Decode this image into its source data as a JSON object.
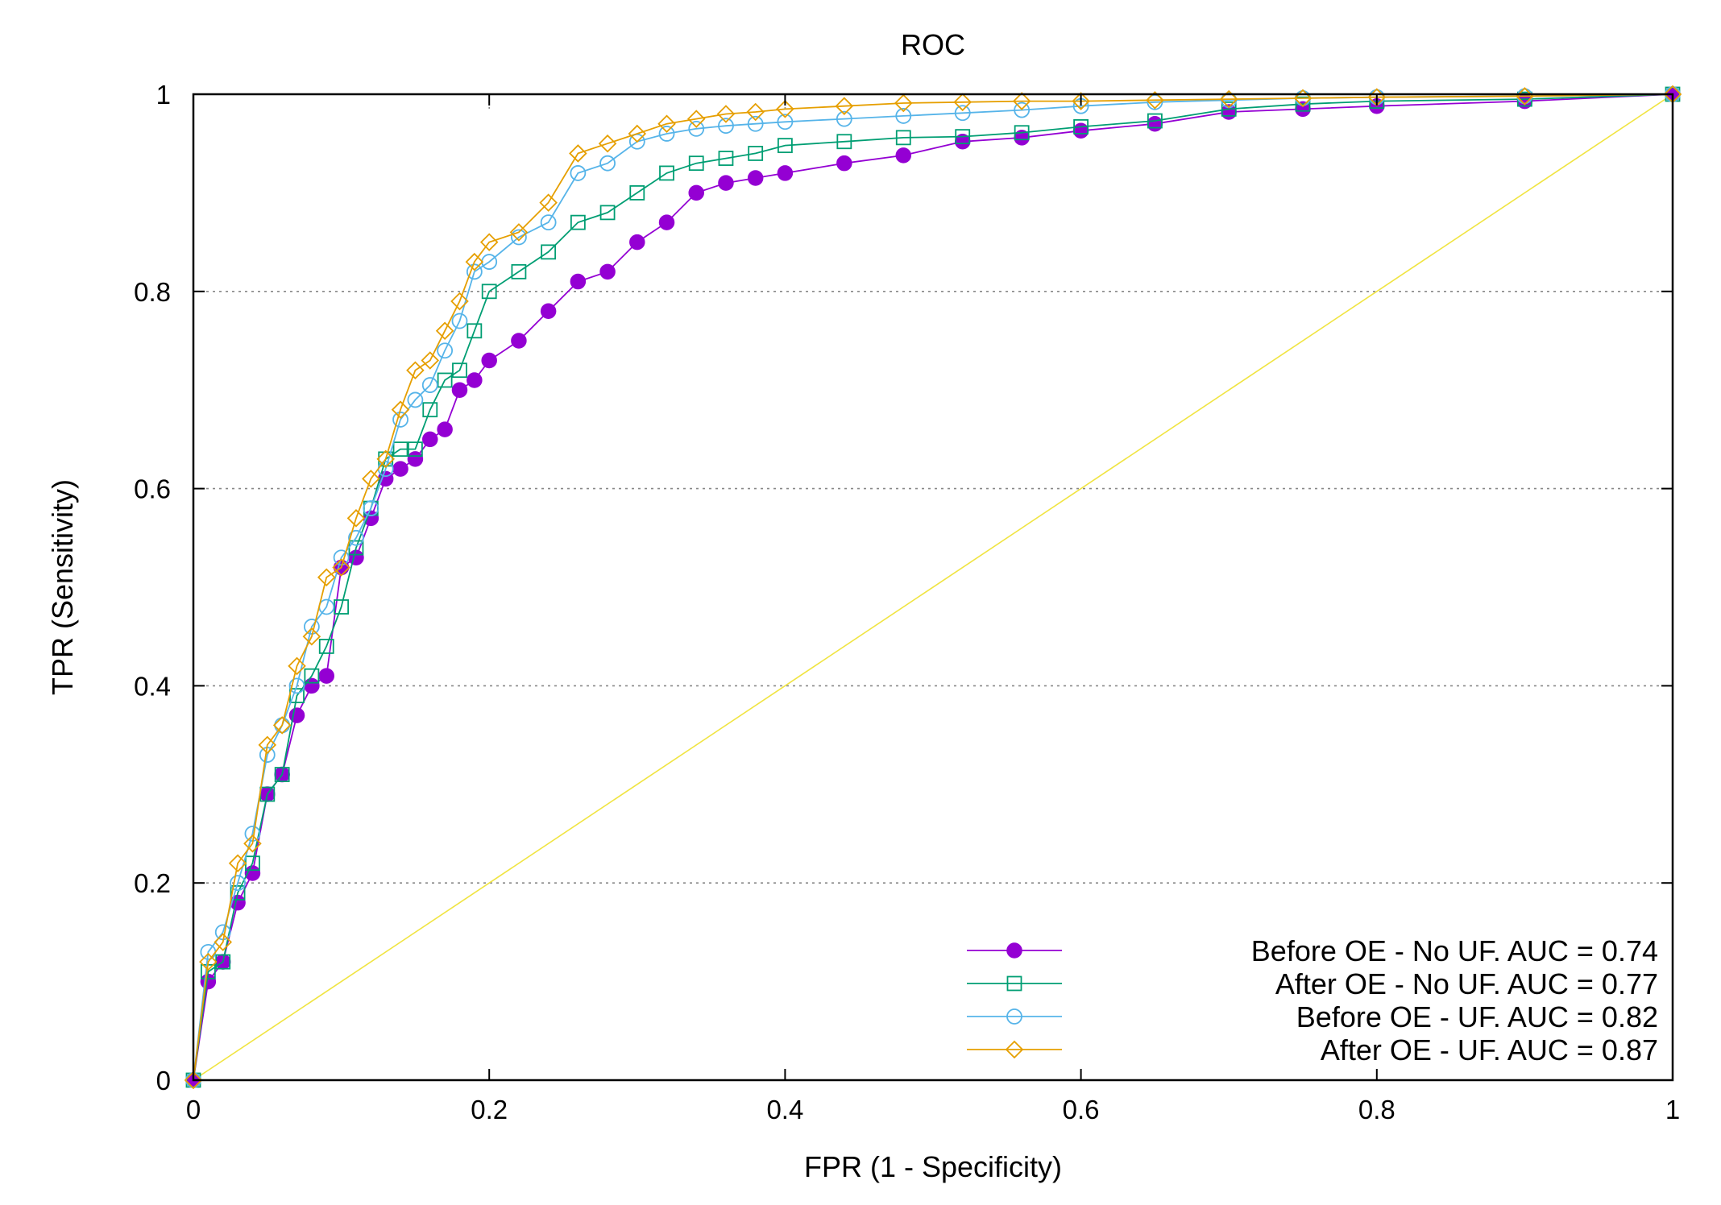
{
  "chart_data": {
    "type": "line",
    "title": "ROC",
    "xlabel": "FPR (1 - Specificity)",
    "ylabel": "TPR (Sensitivity)",
    "xlim": [
      0,
      1
    ],
    "ylim": [
      0,
      1
    ],
    "x_ticks": [
      "0",
      "0.2",
      "0.4",
      "0.6",
      "0.8",
      "1"
    ],
    "y_ticks": [
      "0",
      "0.2",
      "0.4",
      "0.6",
      "0.8",
      "1"
    ],
    "grid": true,
    "legend_position": "bottom-right",
    "series": [
      {
        "name": "Before OE - No UF. AUC = 0.74",
        "color": "#9400d3",
        "marker": "filled-circle",
        "x": [
          0,
          0.01,
          0.02,
          0.03,
          0.04,
          0.05,
          0.06,
          0.07,
          0.08,
          0.09,
          0.1,
          0.11,
          0.12,
          0.13,
          0.14,
          0.15,
          0.16,
          0.17,
          0.18,
          0.19,
          0.2,
          0.22,
          0.24,
          0.26,
          0.28,
          0.3,
          0.32,
          0.34,
          0.36,
          0.38,
          0.4,
          0.44,
          0.48,
          0.52,
          0.56,
          0.6,
          0.65,
          0.7,
          0.75,
          0.8,
          0.9,
          1.0
        ],
        "y": [
          0,
          0.1,
          0.12,
          0.18,
          0.21,
          0.29,
          0.31,
          0.37,
          0.4,
          0.41,
          0.52,
          0.53,
          0.57,
          0.61,
          0.62,
          0.63,
          0.65,
          0.66,
          0.7,
          0.71,
          0.73,
          0.75,
          0.78,
          0.81,
          0.82,
          0.85,
          0.87,
          0.9,
          0.91,
          0.915,
          0.92,
          0.93,
          0.938,
          0.952,
          0.956,
          0.963,
          0.97,
          0.982,
          0.985,
          0.988,
          0.993,
          1.0
        ]
      },
      {
        "name": "After OE - No UF. AUC = 0.77",
        "color": "#009e73",
        "marker": "open-square",
        "x": [
          0,
          0.01,
          0.02,
          0.03,
          0.04,
          0.05,
          0.06,
          0.07,
          0.08,
          0.09,
          0.1,
          0.11,
          0.12,
          0.13,
          0.14,
          0.15,
          0.16,
          0.17,
          0.18,
          0.19,
          0.2,
          0.22,
          0.24,
          0.26,
          0.28,
          0.3,
          0.32,
          0.34,
          0.36,
          0.38,
          0.4,
          0.44,
          0.48,
          0.52,
          0.56,
          0.6,
          0.65,
          0.7,
          0.75,
          0.8,
          0.9,
          1.0
        ],
        "y": [
          0,
          0.11,
          0.12,
          0.19,
          0.22,
          0.29,
          0.31,
          0.39,
          0.41,
          0.44,
          0.48,
          0.54,
          0.58,
          0.63,
          0.64,
          0.64,
          0.68,
          0.71,
          0.72,
          0.76,
          0.8,
          0.82,
          0.84,
          0.87,
          0.88,
          0.9,
          0.92,
          0.93,
          0.935,
          0.94,
          0.948,
          0.952,
          0.956,
          0.957,
          0.961,
          0.967,
          0.973,
          0.985,
          0.99,
          0.993,
          0.995,
          1.0
        ]
      },
      {
        "name": "Before OE - UF. AUC = 0.82",
        "color": "#56b4e9",
        "marker": "open-circle",
        "x": [
          0,
          0.01,
          0.02,
          0.03,
          0.04,
          0.05,
          0.06,
          0.07,
          0.08,
          0.09,
          0.1,
          0.11,
          0.12,
          0.13,
          0.14,
          0.15,
          0.16,
          0.17,
          0.18,
          0.19,
          0.2,
          0.22,
          0.24,
          0.26,
          0.28,
          0.3,
          0.32,
          0.34,
          0.36,
          0.38,
          0.4,
          0.44,
          0.48,
          0.52,
          0.56,
          0.6,
          0.65,
          0.7,
          0.75,
          0.8,
          0.9,
          1.0
        ],
        "y": [
          0,
          0.13,
          0.15,
          0.2,
          0.25,
          0.33,
          0.36,
          0.4,
          0.46,
          0.48,
          0.53,
          0.55,
          0.58,
          0.62,
          0.67,
          0.69,
          0.705,
          0.74,
          0.77,
          0.82,
          0.83,
          0.855,
          0.87,
          0.92,
          0.93,
          0.952,
          0.96,
          0.965,
          0.968,
          0.97,
          0.972,
          0.975,
          0.978,
          0.981,
          0.984,
          0.988,
          0.992,
          0.994,
          0.996,
          0.997,
          0.998,
          1.0
        ]
      },
      {
        "name": "After OE - UF. AUC = 0.87",
        "color": "#e69f00",
        "marker": "open-diamond",
        "x": [
          0,
          0.01,
          0.02,
          0.03,
          0.04,
          0.05,
          0.06,
          0.07,
          0.08,
          0.09,
          0.1,
          0.11,
          0.12,
          0.13,
          0.14,
          0.15,
          0.16,
          0.17,
          0.18,
          0.19,
          0.2,
          0.22,
          0.24,
          0.26,
          0.28,
          0.3,
          0.32,
          0.34,
          0.36,
          0.38,
          0.4,
          0.44,
          0.48,
          0.52,
          0.56,
          0.6,
          0.65,
          0.7,
          0.75,
          0.8,
          0.9,
          1.0
        ],
        "y": [
          0,
          0.12,
          0.14,
          0.22,
          0.24,
          0.34,
          0.36,
          0.42,
          0.45,
          0.51,
          0.52,
          0.57,
          0.61,
          0.63,
          0.68,
          0.72,
          0.73,
          0.76,
          0.79,
          0.83,
          0.85,
          0.86,
          0.89,
          0.94,
          0.95,
          0.96,
          0.97,
          0.975,
          0.98,
          0.982,
          0.985,
          0.988,
          0.991,
          0.992,
          0.993,
          0.993,
          0.994,
          0.995,
          0.996,
          0.997,
          0.998,
          1.0
        ]
      }
    ],
    "reference_line": {
      "name": "chance-diagonal",
      "color": "#f0e442",
      "x": [
        0,
        1
      ],
      "y": [
        0,
        1
      ]
    }
  }
}
